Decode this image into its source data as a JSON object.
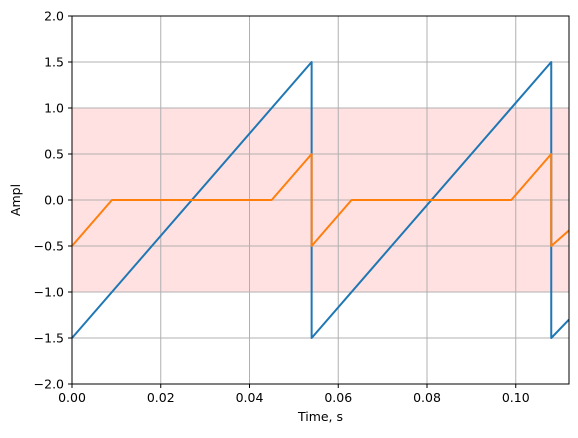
{
  "chart_data": {
    "type": "line",
    "xlabel": "Time, s",
    "ylabel": "Ampl",
    "xlim": [
      0,
      0.112
    ],
    "ylim": [
      -2.0,
      2.0
    ],
    "x_ticks": [
      0.0,
      0.02,
      0.04,
      0.06,
      0.08,
      0.1
    ],
    "x_tick_labels": [
      "0.00",
      "0.02",
      "0.04",
      "0.06",
      "0.08",
      "0.10"
    ],
    "y_ticks": [
      -2.0,
      -1.5,
      -1.0,
      -0.5,
      0.0,
      0.5,
      1.0,
      1.5,
      2.0
    ],
    "y_tick_labels": [
      "−2.0",
      "−1.5",
      "−1.0",
      "−0.5",
      "0.0",
      "0.5",
      "1.0",
      "1.5",
      "2.0"
    ],
    "grid": true,
    "band": {
      "y_min": -1.0,
      "y_max": 1.0,
      "color": "#ffe1e1"
    },
    "series": [
      {
        "color": "#1f77b4",
        "x": [
          0.0,
          0.054,
          0.054,
          0.108,
          0.108,
          0.112
        ],
        "y": [
          -1.5,
          1.5,
          -1.5,
          1.5,
          -1.5,
          -1.3
        ]
      },
      {
        "color": "#ff7f0e",
        "x": [
          0.0,
          0.009,
          0.045,
          0.054,
          0.054,
          0.063,
          0.099,
          0.108,
          0.108,
          0.112
        ],
        "y": [
          -0.5,
          0.0,
          0.0,
          0.5,
          -0.5,
          0.0,
          0.0,
          0.5,
          -0.5,
          -0.33
        ]
      }
    ]
  }
}
